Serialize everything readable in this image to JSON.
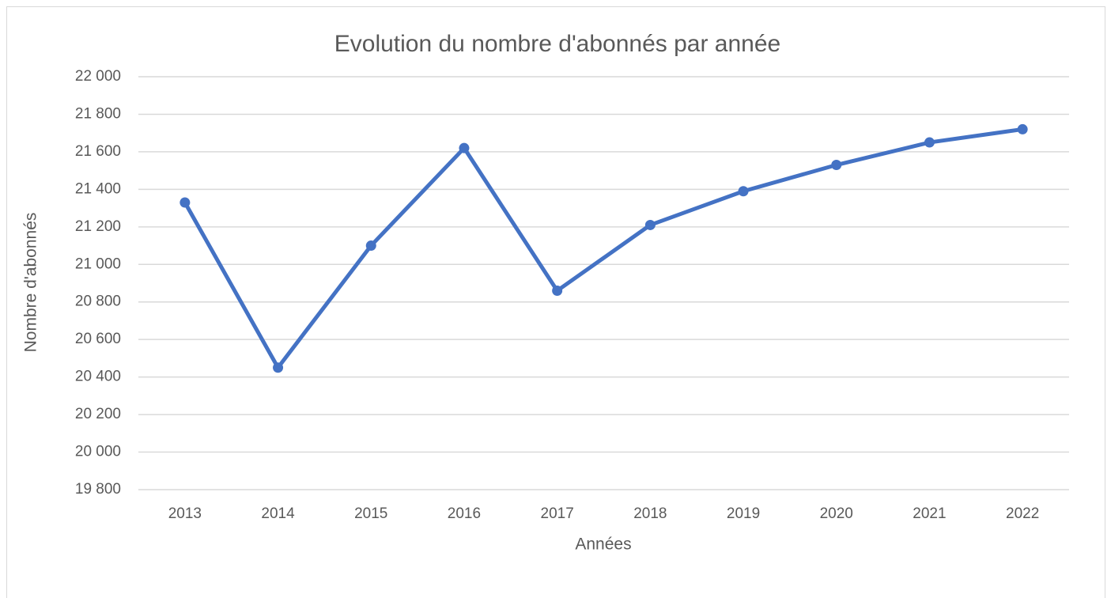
{
  "chart_data": {
    "type": "line",
    "title": "Evolution du nombre d'abonnés par année",
    "x_label": "Années",
    "y_label": "Nombre d'abonnés",
    "categories": [
      "2013",
      "2014",
      "2015",
      "2016",
      "2017",
      "2018",
      "2019",
      "2020",
      "2021",
      "2022"
    ],
    "series": [
      {
        "name": "Nombre d'abonnés",
        "color": "#4472c4",
        "values": [
          21330,
          20450,
          21100,
          21620,
          20860,
          21210,
          21390,
          21530,
          21650,
          21720
        ]
      }
    ],
    "ylim": [
      19800,
      22000
    ],
    "yticks": [
      {
        "value": 19800,
        "label": "19 800"
      },
      {
        "value": 20000,
        "label": "20 000"
      },
      {
        "value": 20200,
        "label": "20 200"
      },
      {
        "value": 20400,
        "label": "20 400"
      },
      {
        "value": 20600,
        "label": "20 600"
      },
      {
        "value": 20800,
        "label": "20 800"
      },
      {
        "value": 21000,
        "label": "21 000"
      },
      {
        "value": 21200,
        "label": "21 200"
      },
      {
        "value": 21400,
        "label": "21 400"
      },
      {
        "value": 21600,
        "label": "21 600"
      },
      {
        "value": 21800,
        "label": "21 800"
      },
      {
        "value": 22000,
        "label": "22 000"
      }
    ],
    "grid": true
  }
}
